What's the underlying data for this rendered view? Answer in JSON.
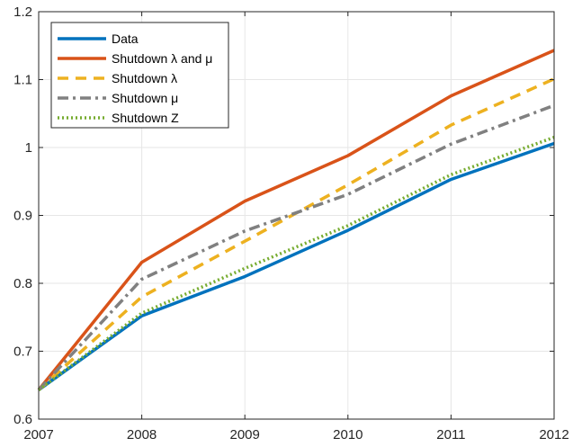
{
  "chart_data": {
    "type": "line",
    "x": [
      2007,
      2008,
      2009,
      2010,
      2011,
      2012
    ],
    "xlim": [
      2007,
      2012
    ],
    "ylim": [
      0.6,
      1.2
    ],
    "xticks": [
      "2007",
      "2008",
      "2009",
      "2010",
      "2011",
      "2012"
    ],
    "yticks": [
      "0.6",
      "0.7",
      "0.8",
      "0.9",
      "1",
      "1.1",
      "1.2"
    ],
    "grid": true,
    "legend_position": "top-left",
    "series": [
      {
        "name": "Data",
        "color": "#0072BD",
        "style": "solid",
        "values": [
          0.643,
          0.752,
          0.81,
          0.878,
          0.953,
          1.006
        ]
      },
      {
        "name": "Shutdown λ and μ",
        "color": "#D95319",
        "style": "solid",
        "values": [
          0.643,
          0.831,
          0.921,
          0.988,
          1.076,
          1.143
        ]
      },
      {
        "name": "Shutdown λ",
        "color": "#EDB120",
        "style": "dashed",
        "values": [
          0.643,
          0.78,
          0.862,
          0.945,
          1.033,
          1.101
        ]
      },
      {
        "name": "Shutdown μ",
        "color": "#808080",
        "style": "dashdot",
        "values": [
          0.643,
          0.806,
          0.877,
          0.931,
          1.005,
          1.062
        ]
      },
      {
        "name": "Shutdown Z",
        "color": "#77AC30",
        "style": "dotted",
        "values": [
          0.643,
          0.756,
          0.822,
          0.885,
          0.96,
          1.015
        ]
      }
    ]
  }
}
